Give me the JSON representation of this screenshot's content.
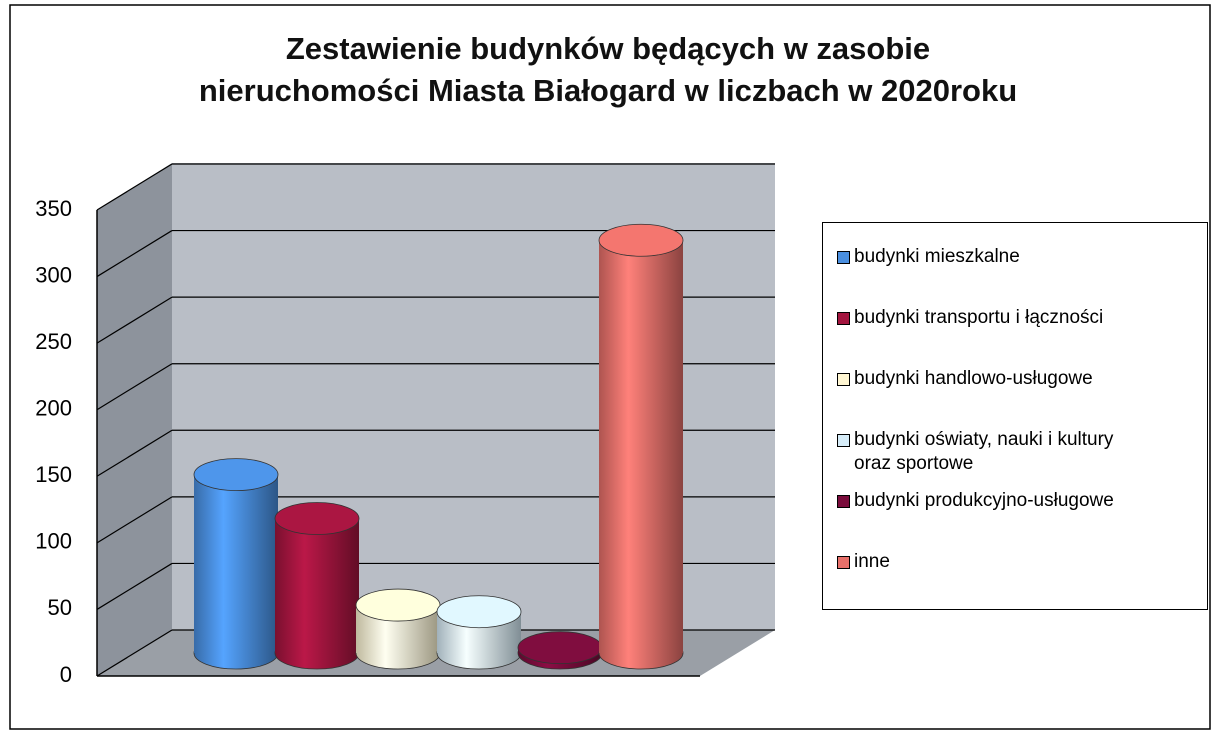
{
  "chart_data": {
    "type": "bar",
    "title": "Zestawienie budynków będących w zasobie\nnieruchomości Miasta Białogard w liczbach w 2020roku",
    "categories": [
      "budynki mieszkalne",
      "budynki transportu i łączności",
      "budynki handlowo-usługowe",
      "budynki oświaty, nauki i kultury\noraz sportowe",
      "budynki produkcyjno-usługowe",
      "inne"
    ],
    "values": [
      134,
      101,
      36,
      31,
      4,
      310
    ],
    "colors": [
      "#4a8fe0",
      "#a3153f",
      "#fff6d2",
      "#d6ecf8",
      "#7a0c3c",
      "#e8706a"
    ],
    "ylim": [
      0,
      350
    ],
    "yticks": [
      0,
      50,
      100,
      150,
      200,
      250,
      300,
      350
    ],
    "grid": true,
    "legend": "right"
  }
}
